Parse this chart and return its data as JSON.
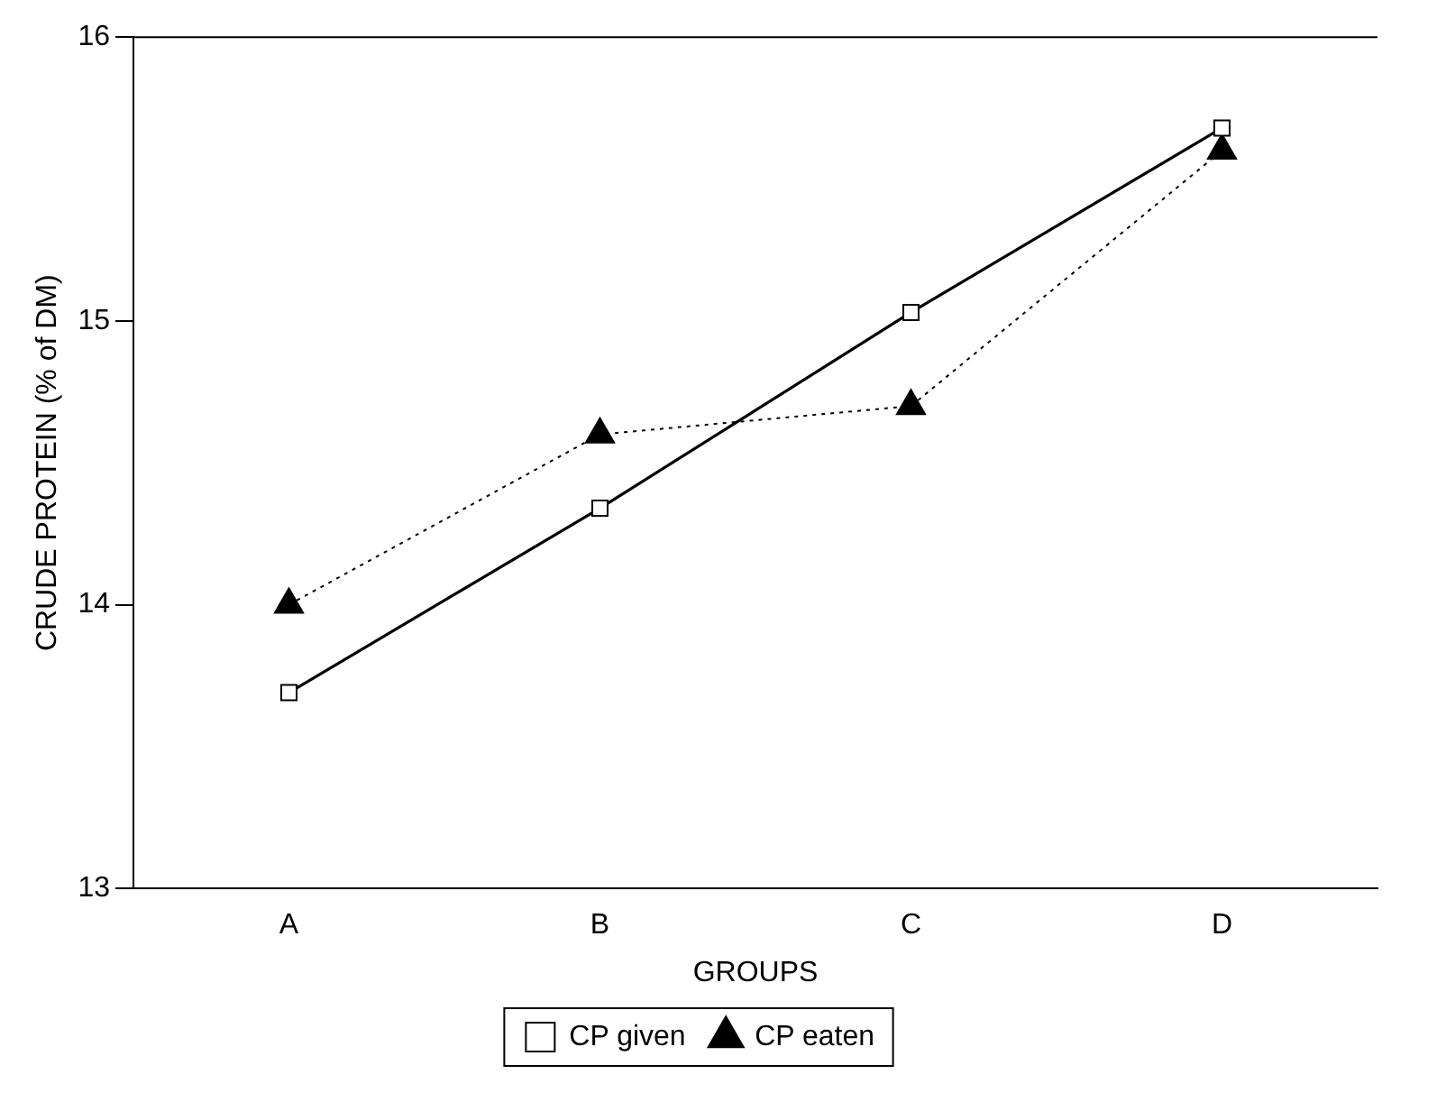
{
  "chart_data": {
    "type": "line",
    "xlabel": "GROUPS",
    "ylabel": "CRUDE PROTEIN (% of DM)",
    "categories": [
      "A",
      "B",
      "C",
      "D"
    ],
    "series": [
      {
        "name": "CP given",
        "color": "#000000",
        "values": [
          13.69,
          14.34,
          15.03,
          15.68
        ],
        "marker": "square",
        "line_style": "solid"
      },
      {
        "name": "CP eaten",
        "color": "#000000",
        "values": [
          14.0,
          14.6,
          14.7,
          15.6
        ],
        "marker": "triangle",
        "line_style": "dotted"
      }
    ],
    "ylim": [
      13,
      16
    ],
    "yticks": [
      13,
      14,
      15,
      16
    ],
    "grid": false,
    "legend": "bottom"
  }
}
